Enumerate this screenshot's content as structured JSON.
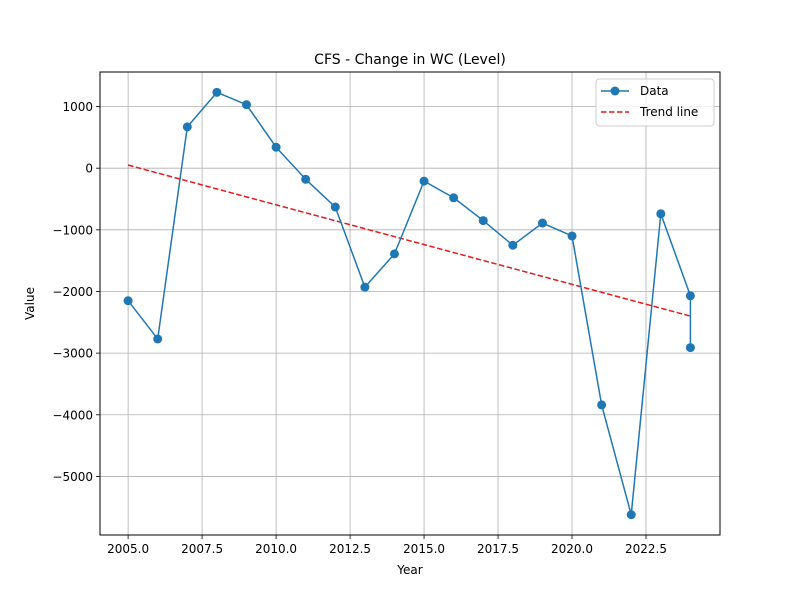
{
  "chart_data": {
    "type": "line",
    "title": "CFS - Change in WC (Level)",
    "xlabel": "Year",
    "ylabel": "Value",
    "xlim": [
      2004.05,
      2025.0
    ],
    "ylim": [
      -5950,
      1560
    ],
    "x_ticks": [
      2005.0,
      2007.5,
      2010.0,
      2012.5,
      2015.0,
      2017.5,
      2020.0,
      2022.5
    ],
    "x_tick_labels": [
      "2005.0",
      "2007.5",
      "2010.0",
      "2012.5",
      "2015.0",
      "2017.5",
      "2020.0",
      "2022.5"
    ],
    "y_ticks": [
      1000,
      0,
      -1000,
      -2000,
      -3000,
      -4000,
      -5000
    ],
    "y_tick_labels": [
      "1000",
      "0",
      "−1000",
      "−2000",
      "−3000",
      "−4000",
      "−5000"
    ],
    "grid": true,
    "legend_position": "top-right",
    "series": [
      {
        "name": "Data",
        "style": "line-with-markers",
        "color": "#1f77b4",
        "x": [
          2005,
          2006,
          2007,
          2008,
          2009,
          2010,
          2011,
          2012,
          2013,
          2014,
          2015,
          2016,
          2017,
          2018,
          2019,
          2020,
          2021,
          2022,
          2023,
          2024,
          2024
        ],
        "y": [
          -2150,
          -2770,
          670,
          1230,
          1030,
          340,
          -180,
          -630,
          -1930,
          -1390,
          -210,
          -480,
          -850,
          -1250,
          -890,
          -1100,
          -3840,
          -5620,
          -740,
          -2070,
          -2910
        ]
      },
      {
        "name": "Trend line",
        "style": "dashed",
        "color": "#e41a1c",
        "x": [
          2005,
          2024
        ],
        "y": [
          50,
          -2400
        ]
      }
    ]
  }
}
